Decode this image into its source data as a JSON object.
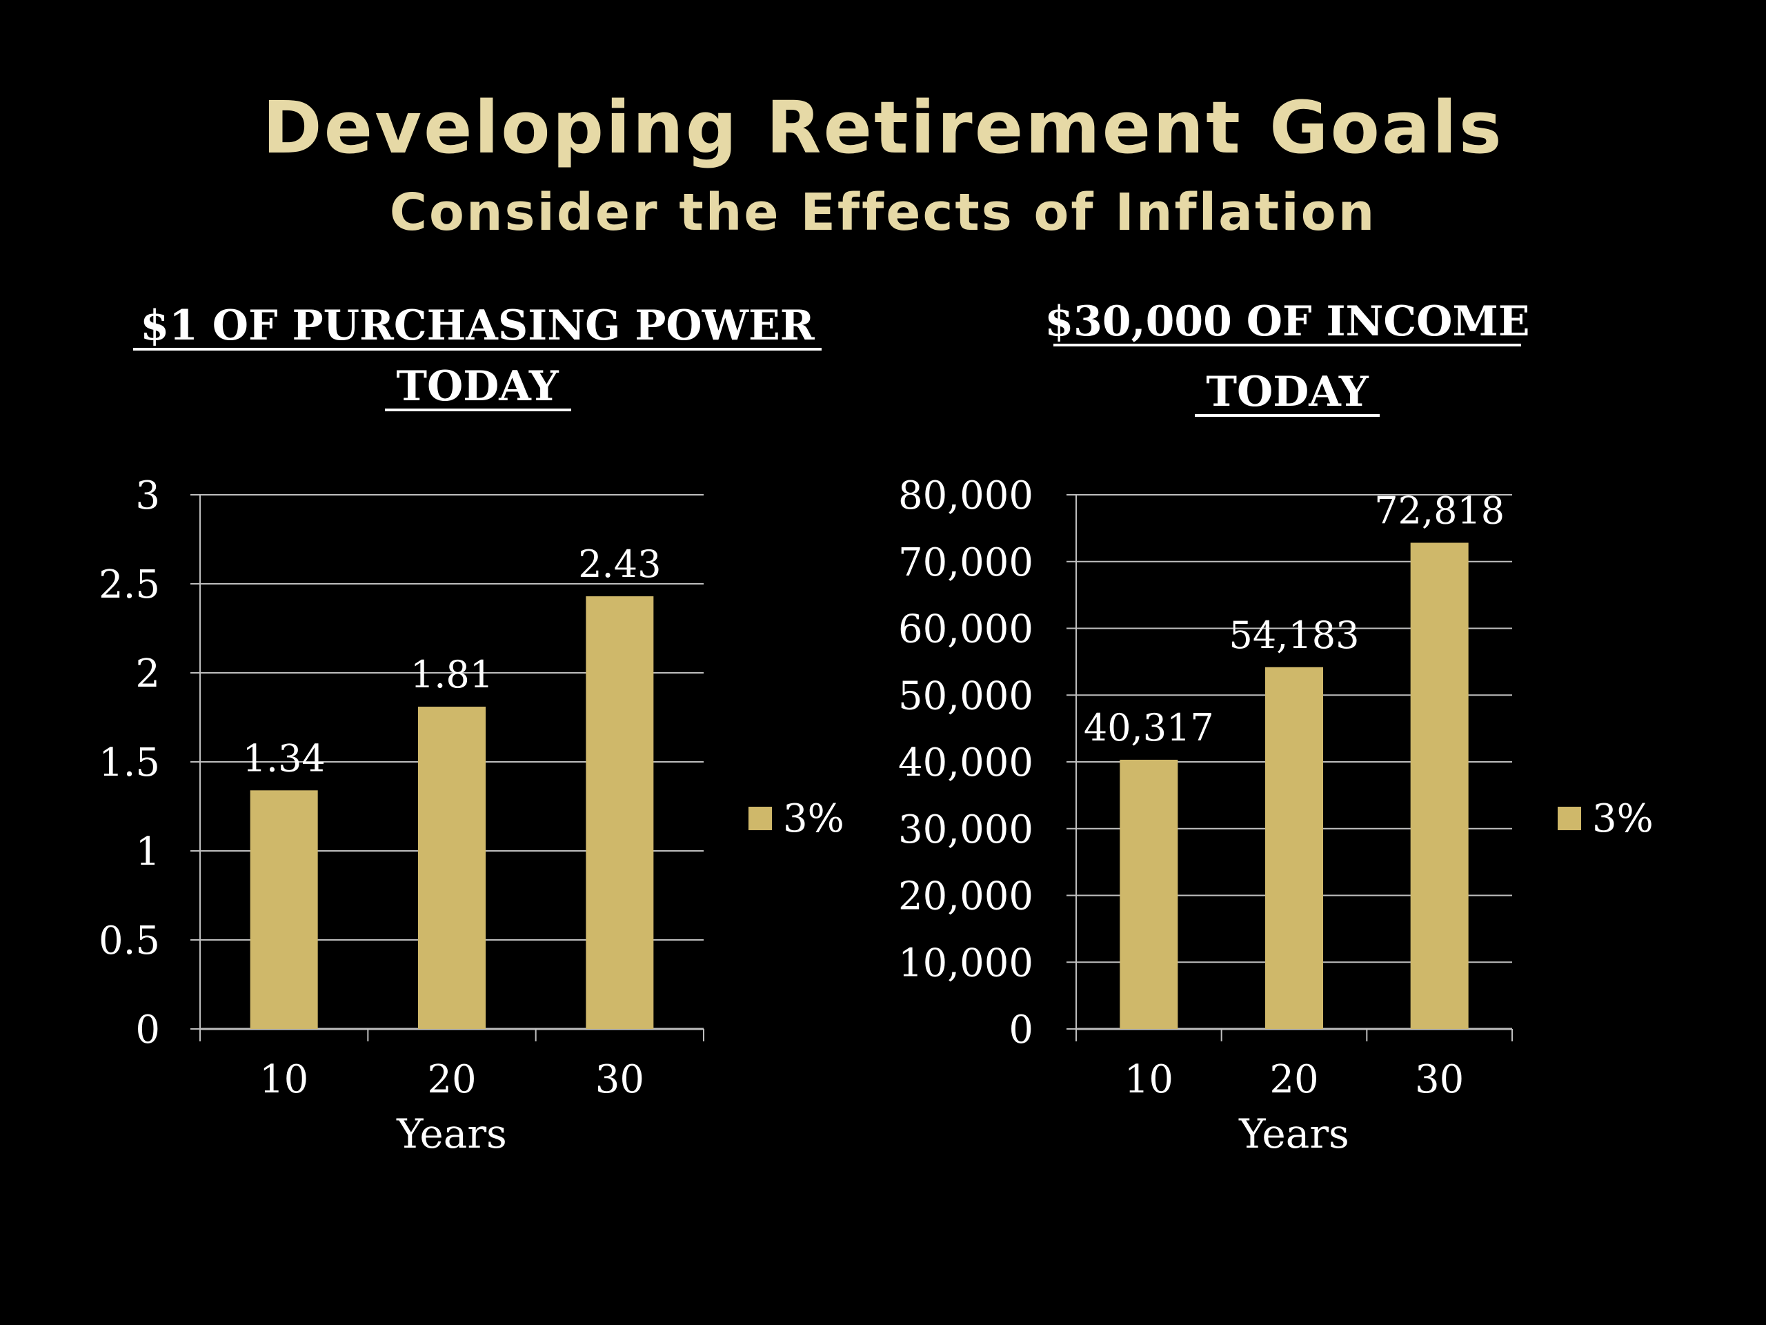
{
  "slide": {
    "title": "Developing Retirement Goals",
    "subtitle": "Consider the Effects of Inflation"
  },
  "colors": {
    "background": "#000000",
    "title_text": "#e6d9a6",
    "bar": "#cfb86a",
    "axis_text": "#ffffff",
    "gridline": "#bfbfbf"
  },
  "chart_data": [
    {
      "type": "bar",
      "title": [
        "$1 OF PURCHASING POWER",
        "TODAY"
      ],
      "xlabel": "Years",
      "ylabel": "",
      "categories": [
        "10",
        "20",
        "30"
      ],
      "series": [
        {
          "name": "3%",
          "values": [
            1.34,
            1.81,
            2.43
          ],
          "labels": [
            "1.34",
            "1.81",
            "2.43"
          ]
        }
      ],
      "ylim": [
        0,
        3
      ],
      "yticks": [
        0,
        0.5,
        1,
        1.5,
        2,
        2.5,
        3
      ],
      "ytick_labels": [
        "0",
        "0.5",
        "1",
        "1.5",
        "2",
        "2.5",
        "3"
      ],
      "grid": true,
      "legend": "right"
    },
    {
      "type": "bar",
      "title": [
        "$30,000 OF INCOME",
        "TODAY"
      ],
      "xlabel": "Years",
      "ylabel": "",
      "categories": [
        "10",
        "20",
        "30"
      ],
      "series": [
        {
          "name": "3%",
          "values": [
            40317,
            54183,
            72818
          ],
          "labels": [
            "40,317",
            "54,183",
            "72,818"
          ]
        }
      ],
      "ylim": [
        0,
        80000
      ],
      "yticks": [
        0,
        10000,
        20000,
        30000,
        40000,
        50000,
        60000,
        70000,
        80000
      ],
      "ytick_labels": [
        "0",
        "10,000",
        "20,000",
        "30,000",
        "40,000",
        "50,000",
        "60,000",
        "70,000",
        "80,000"
      ],
      "grid": true,
      "legend": "right"
    }
  ]
}
